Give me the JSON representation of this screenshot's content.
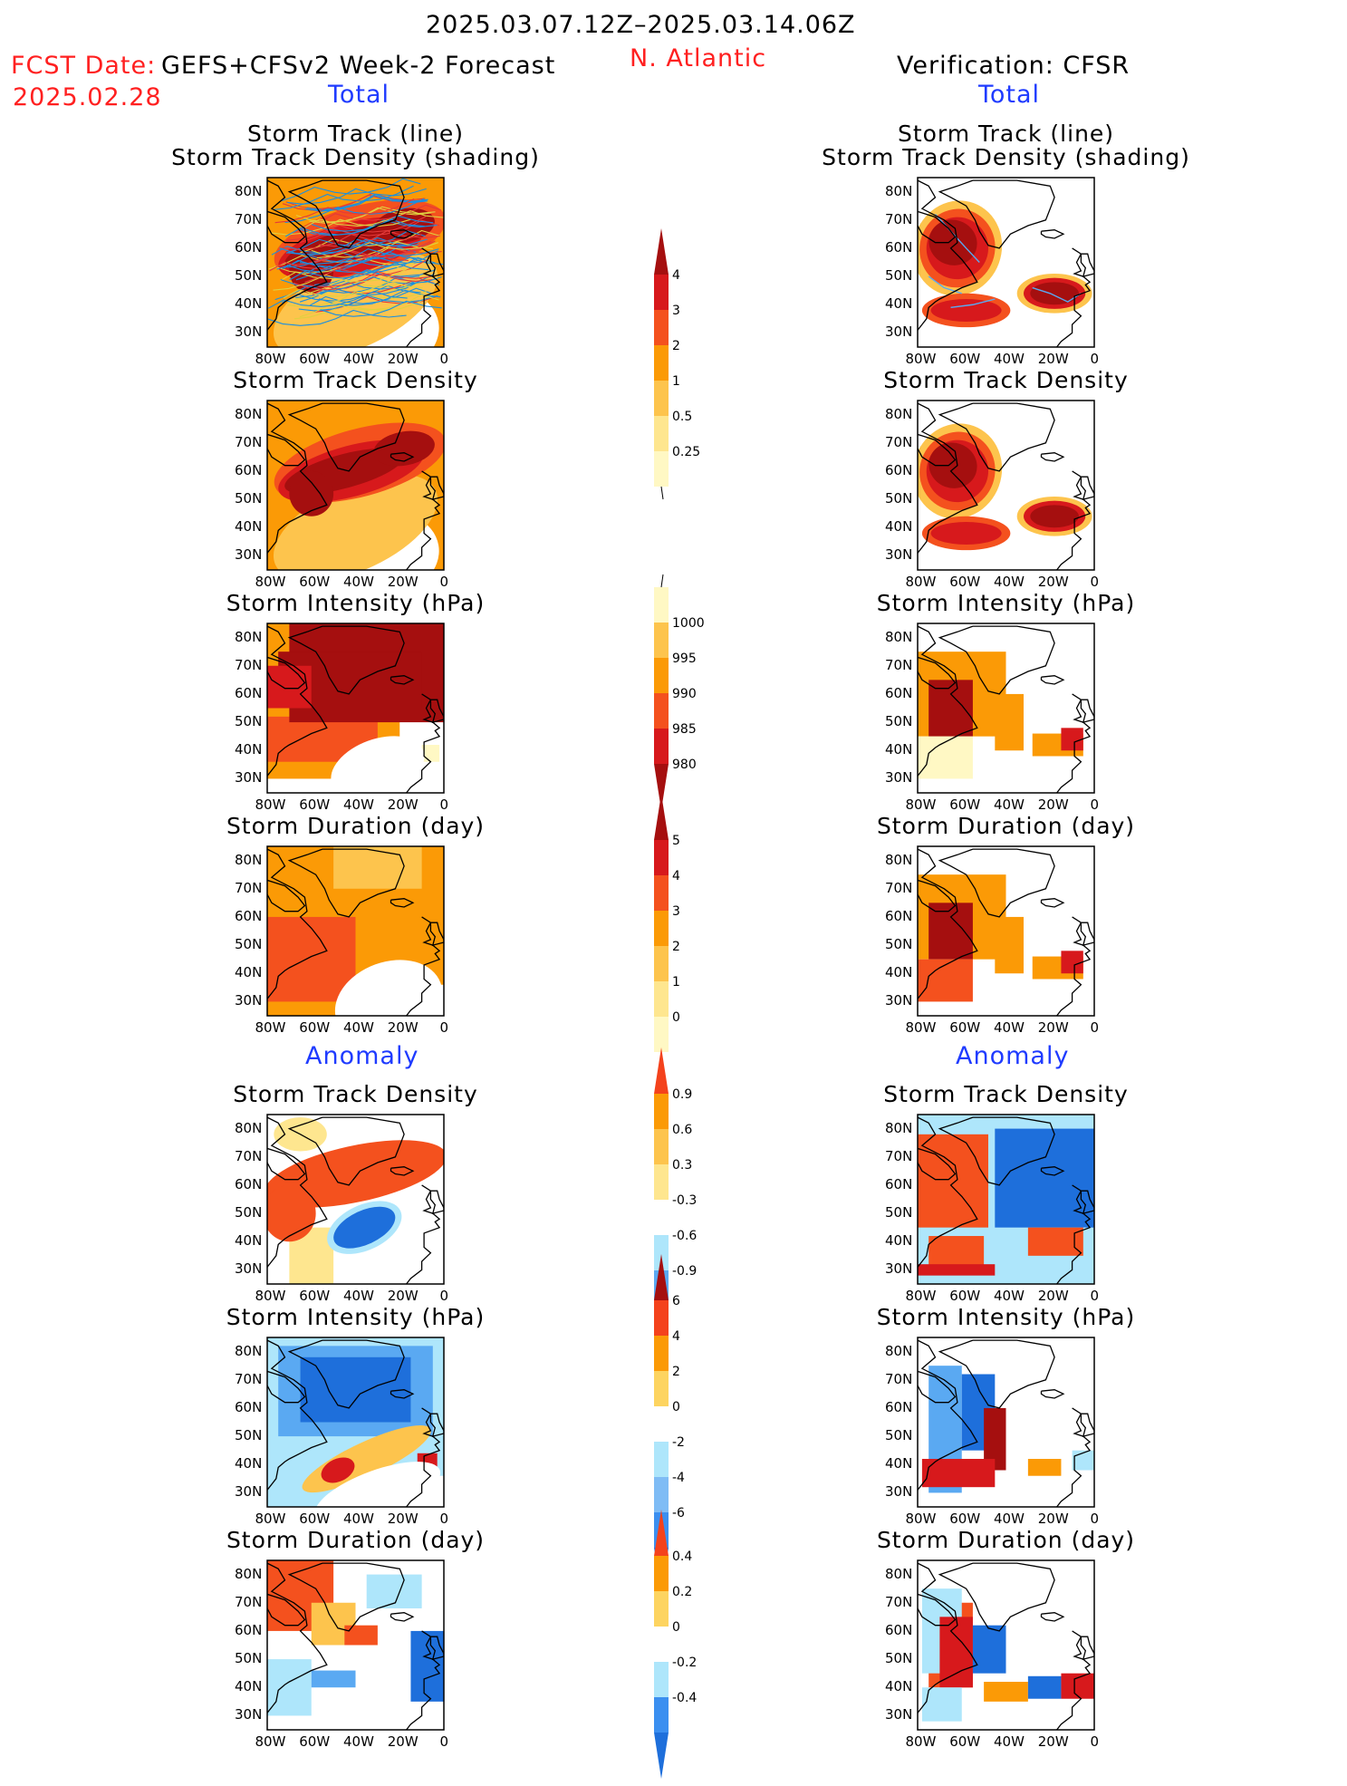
{
  "header": {
    "period": "2025.03.07.12Z–2025.03.14.06Z",
    "fcst_label": "FCST Date:",
    "fcst_model": "GEFS+CFSv2 Week-2 Forecast",
    "fcst_date": "2025.02.28",
    "region": "N. Atlantic",
    "verification": "Verification: CFSR",
    "total_label": "Total",
    "anomaly_label": "Anomaly"
  },
  "axes": {
    "lat_ticks": [
      "80N",
      "70N",
      "60N",
      "50N",
      "40N",
      "30N"
    ],
    "lon_ticks": [
      "80W",
      "60W",
      "40W",
      "20W",
      "0"
    ]
  },
  "panels": [
    {
      "row": 0,
      "title_lines": [
        "Storm Track (line)",
        "Storm Track Density (shading)"
      ]
    },
    {
      "row": 1,
      "title_lines": [
        "Storm Track Density"
      ]
    },
    {
      "row": 2,
      "title_lines": [
        "Storm Intensity (hPa)"
      ]
    },
    {
      "row": 3,
      "title_lines": [
        "Storm Duration (day)"
      ]
    },
    {
      "row": 4,
      "title_lines": [
        "Storm Track Density"
      ]
    },
    {
      "row": 5,
      "title_lines": [
        "Storm Intensity (hPa)"
      ]
    },
    {
      "row": 6,
      "title_lines": [
        "Storm Duration (day)"
      ]
    }
  ],
  "colorbars": [
    {
      "id": "density",
      "labels": [
        "4",
        "3",
        "2",
        "1",
        "0.5",
        "0.25"
      ],
      "colors": [
        "#a50f0f",
        "#d7191c",
        "#f4511e",
        "#fb9a06",
        "#fdc44d",
        "#fee68f",
        "#fff8c4"
      ]
    },
    {
      "id": "intensity",
      "labels": [
        "1000",
        "995",
        "990",
        "985",
        "980"
      ],
      "colors": [
        "#fff8c4",
        "#fdc44d",
        "#fb9a06",
        "#f4511e",
        "#d7191c",
        "#a50f0f"
      ]
    },
    {
      "id": "duration",
      "labels": [
        "5",
        "4",
        "3",
        "2",
        "1",
        "0"
      ],
      "colors": [
        "#a50f0f",
        "#d7191c",
        "#f4511e",
        "#fb9a06",
        "#fdc44d",
        "#fee68f",
        "#fff8c4"
      ]
    },
    {
      "id": "density_anom",
      "labels": [
        "0.9",
        "0.6",
        "0.3",
        "-0.3",
        "-0.6",
        "-0.9"
      ],
      "colors": [
        "#f4421c",
        "#fb9a06",
        "#fdc44d",
        "#fee68f",
        "#ffffff",
        "#aee6fb",
        "#5aa9f2",
        "#1e6fdb"
      ]
    },
    {
      "id": "intensity_anom",
      "labels": [
        "6",
        "4",
        "2",
        "0",
        "-2",
        "-4",
        "-6"
      ],
      "colors": [
        "#a50f0f",
        "#f4421c",
        "#fb9a06",
        "#fdd460",
        "#ffffff",
        "#aee6fb",
        "#7fbcf5",
        "#3b8ff0",
        "#1e6fdb"
      ]
    },
    {
      "id": "duration_anom",
      "labels": [
        "0.4",
        "0.2",
        "0",
        "-0.2",
        "-0.4"
      ],
      "colors": [
        "#f4421c",
        "#fb9a06",
        "#fdd460",
        "#ffffff",
        "#aee6fb",
        "#3b8ff0",
        "#1e6fdb"
      ]
    }
  ],
  "shade_colors": {
    "dark_red": "#a50f0f",
    "red": "#d7191c",
    "orange_red": "#f4511e",
    "orange": "#fb9a06",
    "light_orange": "#fdc44d",
    "yellow": "#fee68f",
    "pale": "#fff8c4",
    "light_blue": "#aee6fb",
    "mid_blue": "#5aa9f2",
    "blue": "#1e6fdb",
    "track_blue": "#1a8fe0",
    "track_red": "#e33a3a",
    "track_yellow": "#e0d040"
  }
}
